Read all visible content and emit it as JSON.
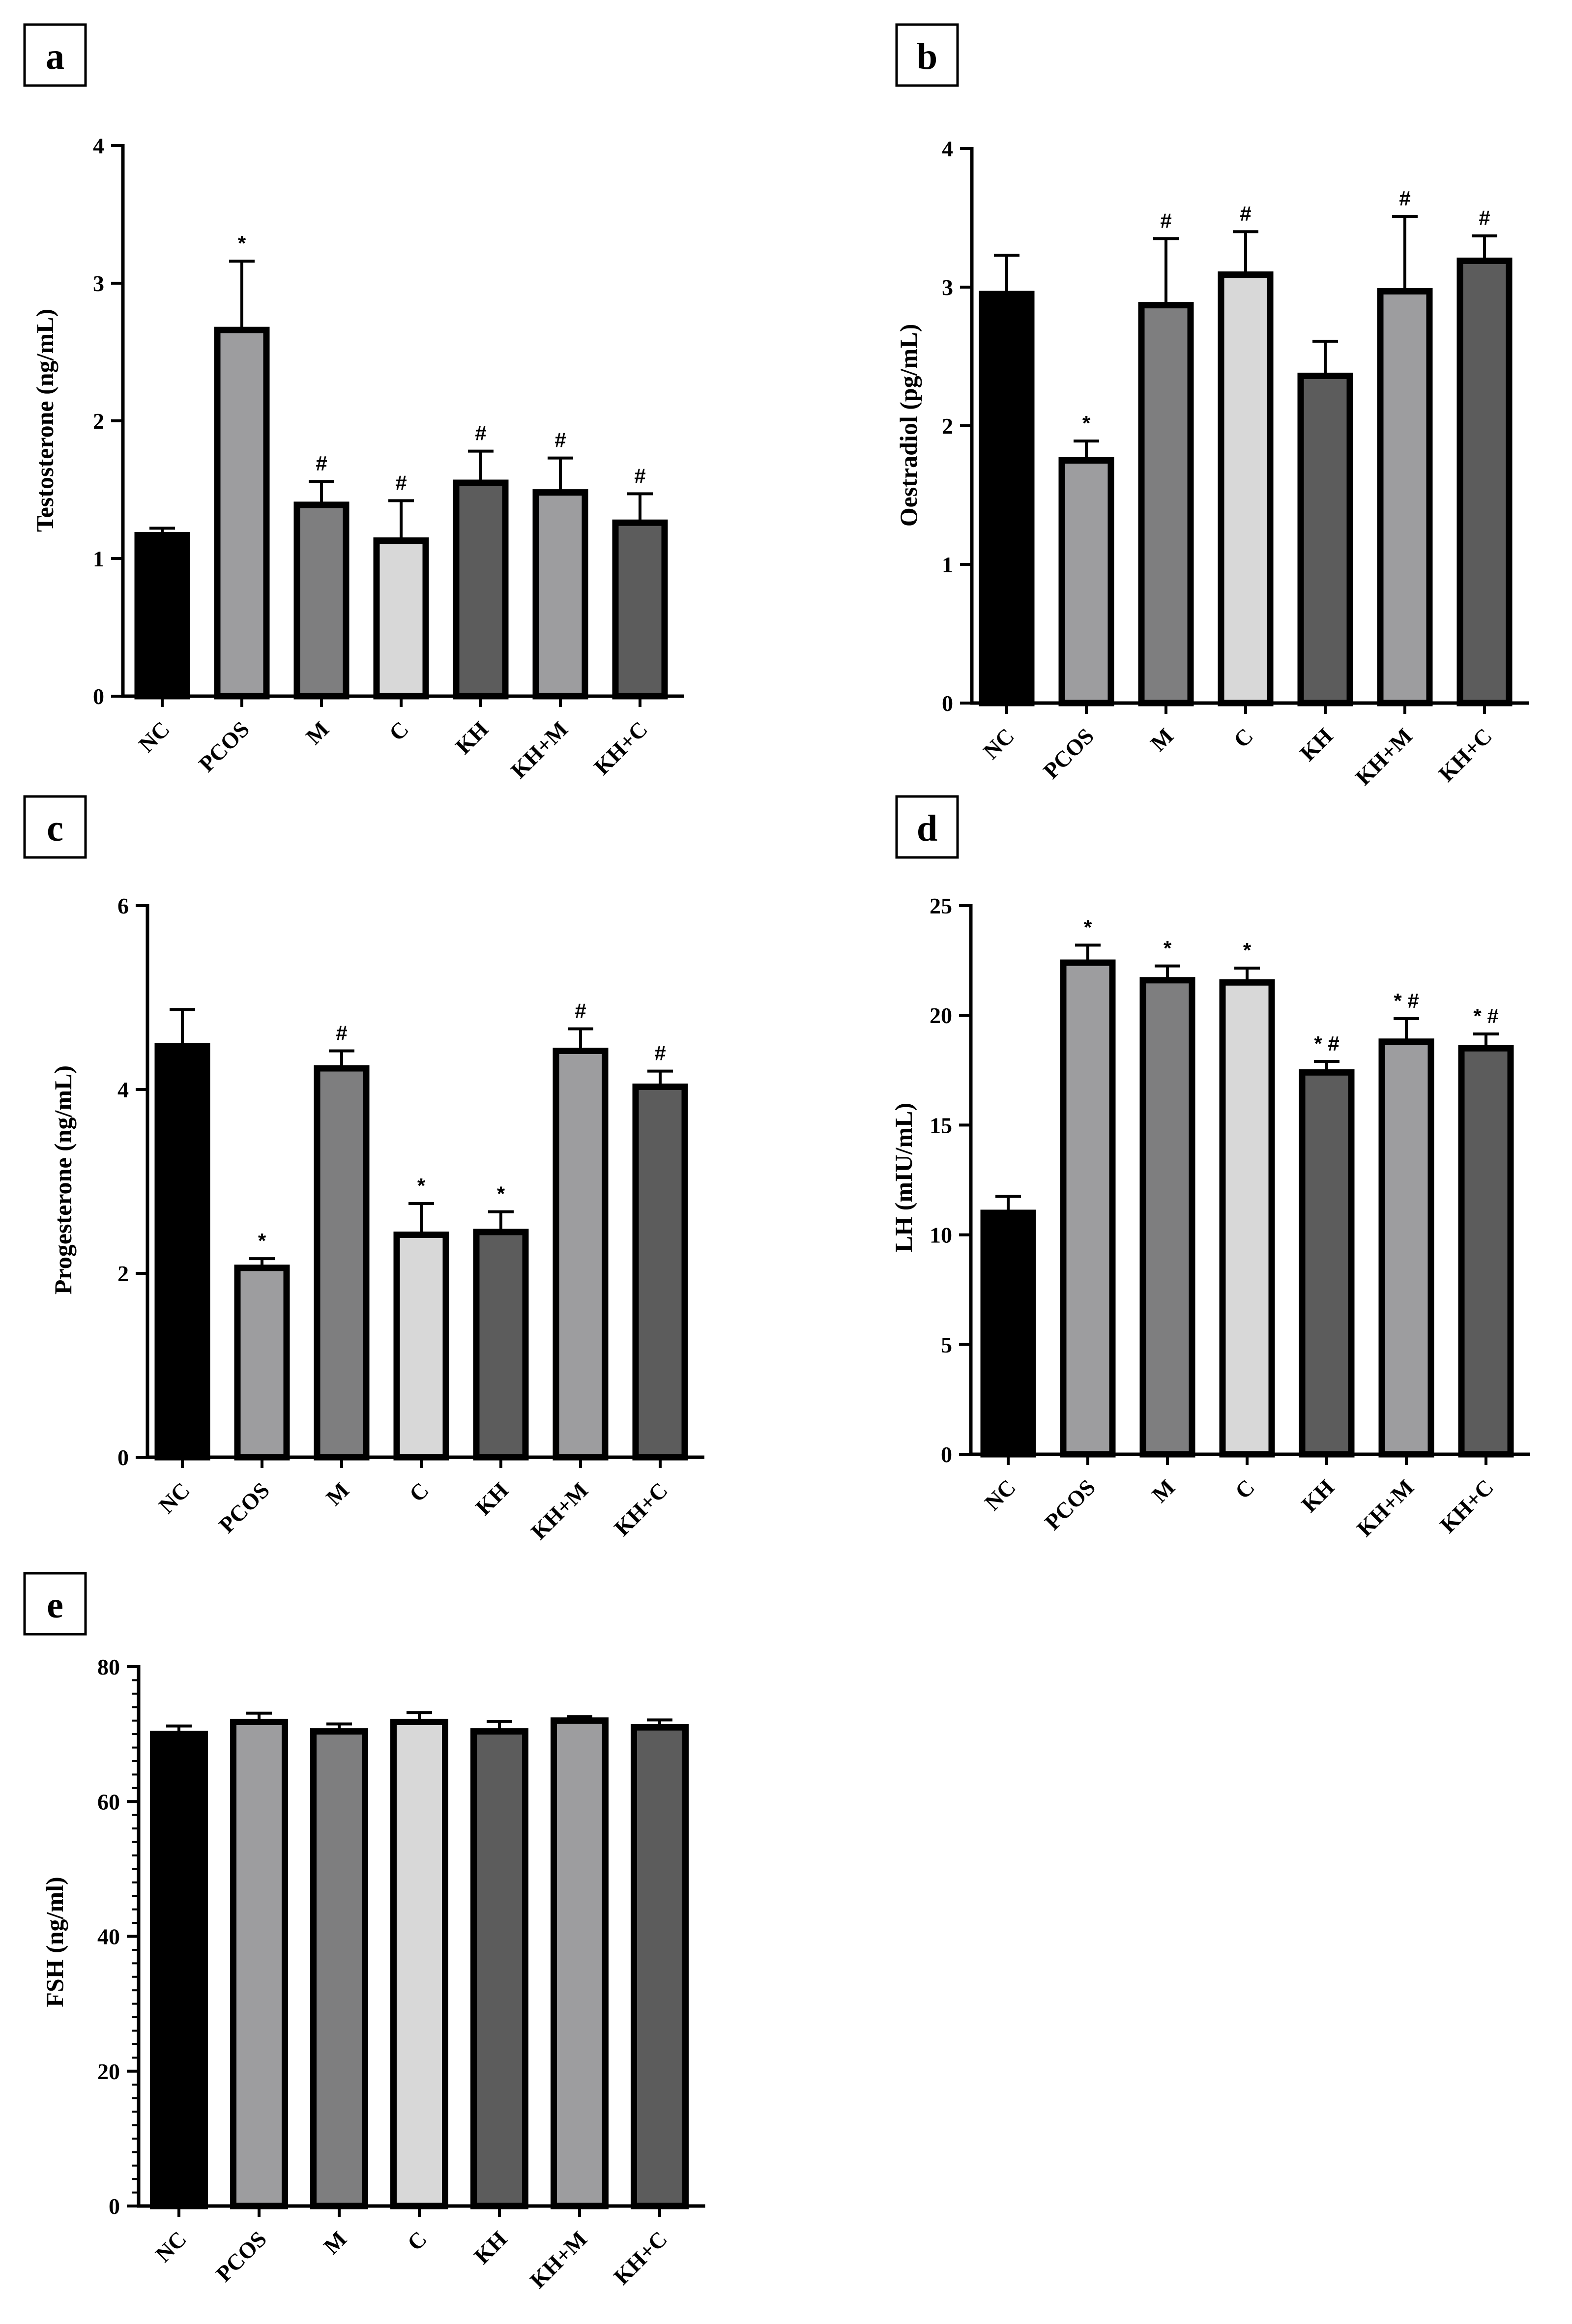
{
  "colors": {
    "NC": "#000000",
    "PCOS": "#9d9d9f",
    "M": "#7e7e7f",
    "C": "#d8d8d8",
    "KH": "#5c5c5c",
    "KH+M": "#9d9d9f",
    "KH+C": "#5c5c5c"
  },
  "chart_data": [
    {
      "panel": "a",
      "type": "bar",
      "categories": [
        "NC",
        "PCOS",
        "M",
        "C",
        "KH",
        "KH+M",
        "KH+C"
      ],
      "values": [
        1.17,
        2.66,
        1.39,
        1.13,
        1.55,
        1.48,
        1.26
      ],
      "errors": [
        0.05,
        0.5,
        0.17,
        0.29,
        0.23,
        0.25,
        0.21
      ],
      "annotations": [
        "",
        "*",
        "#",
        "#",
        "#",
        "#",
        "#"
      ],
      "ylabel": "Testosterone (ng/mL)",
      "ylim": [
        0,
        4
      ],
      "yticks": [
        "0",
        "1",
        "2",
        "3",
        "4"
      ]
    },
    {
      "panel": "b",
      "type": "bar",
      "categories": [
        "NC",
        "PCOS",
        "M",
        "C",
        "KH",
        "KH+M",
        "KH+C"
      ],
      "values": [
        2.95,
        1.75,
        2.87,
        3.09,
        2.36,
        2.97,
        3.19
      ],
      "errors": [
        0.28,
        0.14,
        0.48,
        0.31,
        0.25,
        0.54,
        0.18
      ],
      "annotations": [
        "",
        "*",
        "#",
        "#",
        "",
        "#",
        "#"
      ],
      "ylabel": "Oestradiol (pg/mL)",
      "ylim": [
        0,
        4
      ],
      "yticks": [
        "0",
        "1",
        "2",
        "3",
        "4"
      ]
    },
    {
      "panel": "c",
      "type": "bar",
      "categories": [
        "NC",
        "PCOS",
        "M",
        "C",
        "KH",
        "KH+M",
        "KH+C"
      ],
      "values": [
        4.47,
        2.06,
        4.23,
        2.42,
        2.45,
        4.42,
        4.03
      ],
      "errors": [
        0.4,
        0.1,
        0.19,
        0.34,
        0.22,
        0.24,
        0.17
      ],
      "annotations": [
        "",
        "*",
        "#",
        "*",
        "*",
        "#",
        "#"
      ],
      "ylabel": "Progesterone (ng/mL)",
      "ylim": [
        0,
        6
      ],
      "yticks": [
        "0",
        "2",
        "4",
        "6"
      ]
    },
    {
      "panel": "d",
      "type": "bar",
      "categories": [
        "NC",
        "PCOS",
        "M",
        "C",
        "KH",
        "KH+M",
        "KH+C"
      ],
      "values": [
        11.0,
        22.4,
        21.6,
        21.5,
        17.4,
        18.8,
        18.5
      ],
      "errors": [
        0.75,
        0.8,
        0.65,
        0.65,
        0.5,
        1.05,
        0.65
      ],
      "annotations": [
        "",
        "*",
        "*",
        "*",
        "* #",
        "* #",
        "* #"
      ],
      "ylabel": "LH (mIU/mL)",
      "ylim": [
        0,
        25
      ],
      "yticks": [
        "0",
        "5",
        "10",
        "15",
        "20",
        "25"
      ]
    },
    {
      "panel": "e",
      "type": "bar",
      "categories": [
        "NC",
        "PCOS",
        "M",
        "C",
        "KH",
        "KH+M",
        "KH+C"
      ],
      "values": [
        70.0,
        71.8,
        70.4,
        71.8,
        70.4,
        72.0,
        71.0
      ],
      "errors": [
        1.2,
        1.3,
        1.1,
        1.4,
        1.5,
        0.6,
        1.1
      ],
      "annotations": [
        "",
        "",
        "",
        "",
        "",
        "",
        ""
      ],
      "ylabel": "FSH (ng/ml)",
      "ylim": [
        0,
        80
      ],
      "yticks": [
        "0",
        "20",
        "40",
        "60",
        "80"
      ]
    }
  ]
}
